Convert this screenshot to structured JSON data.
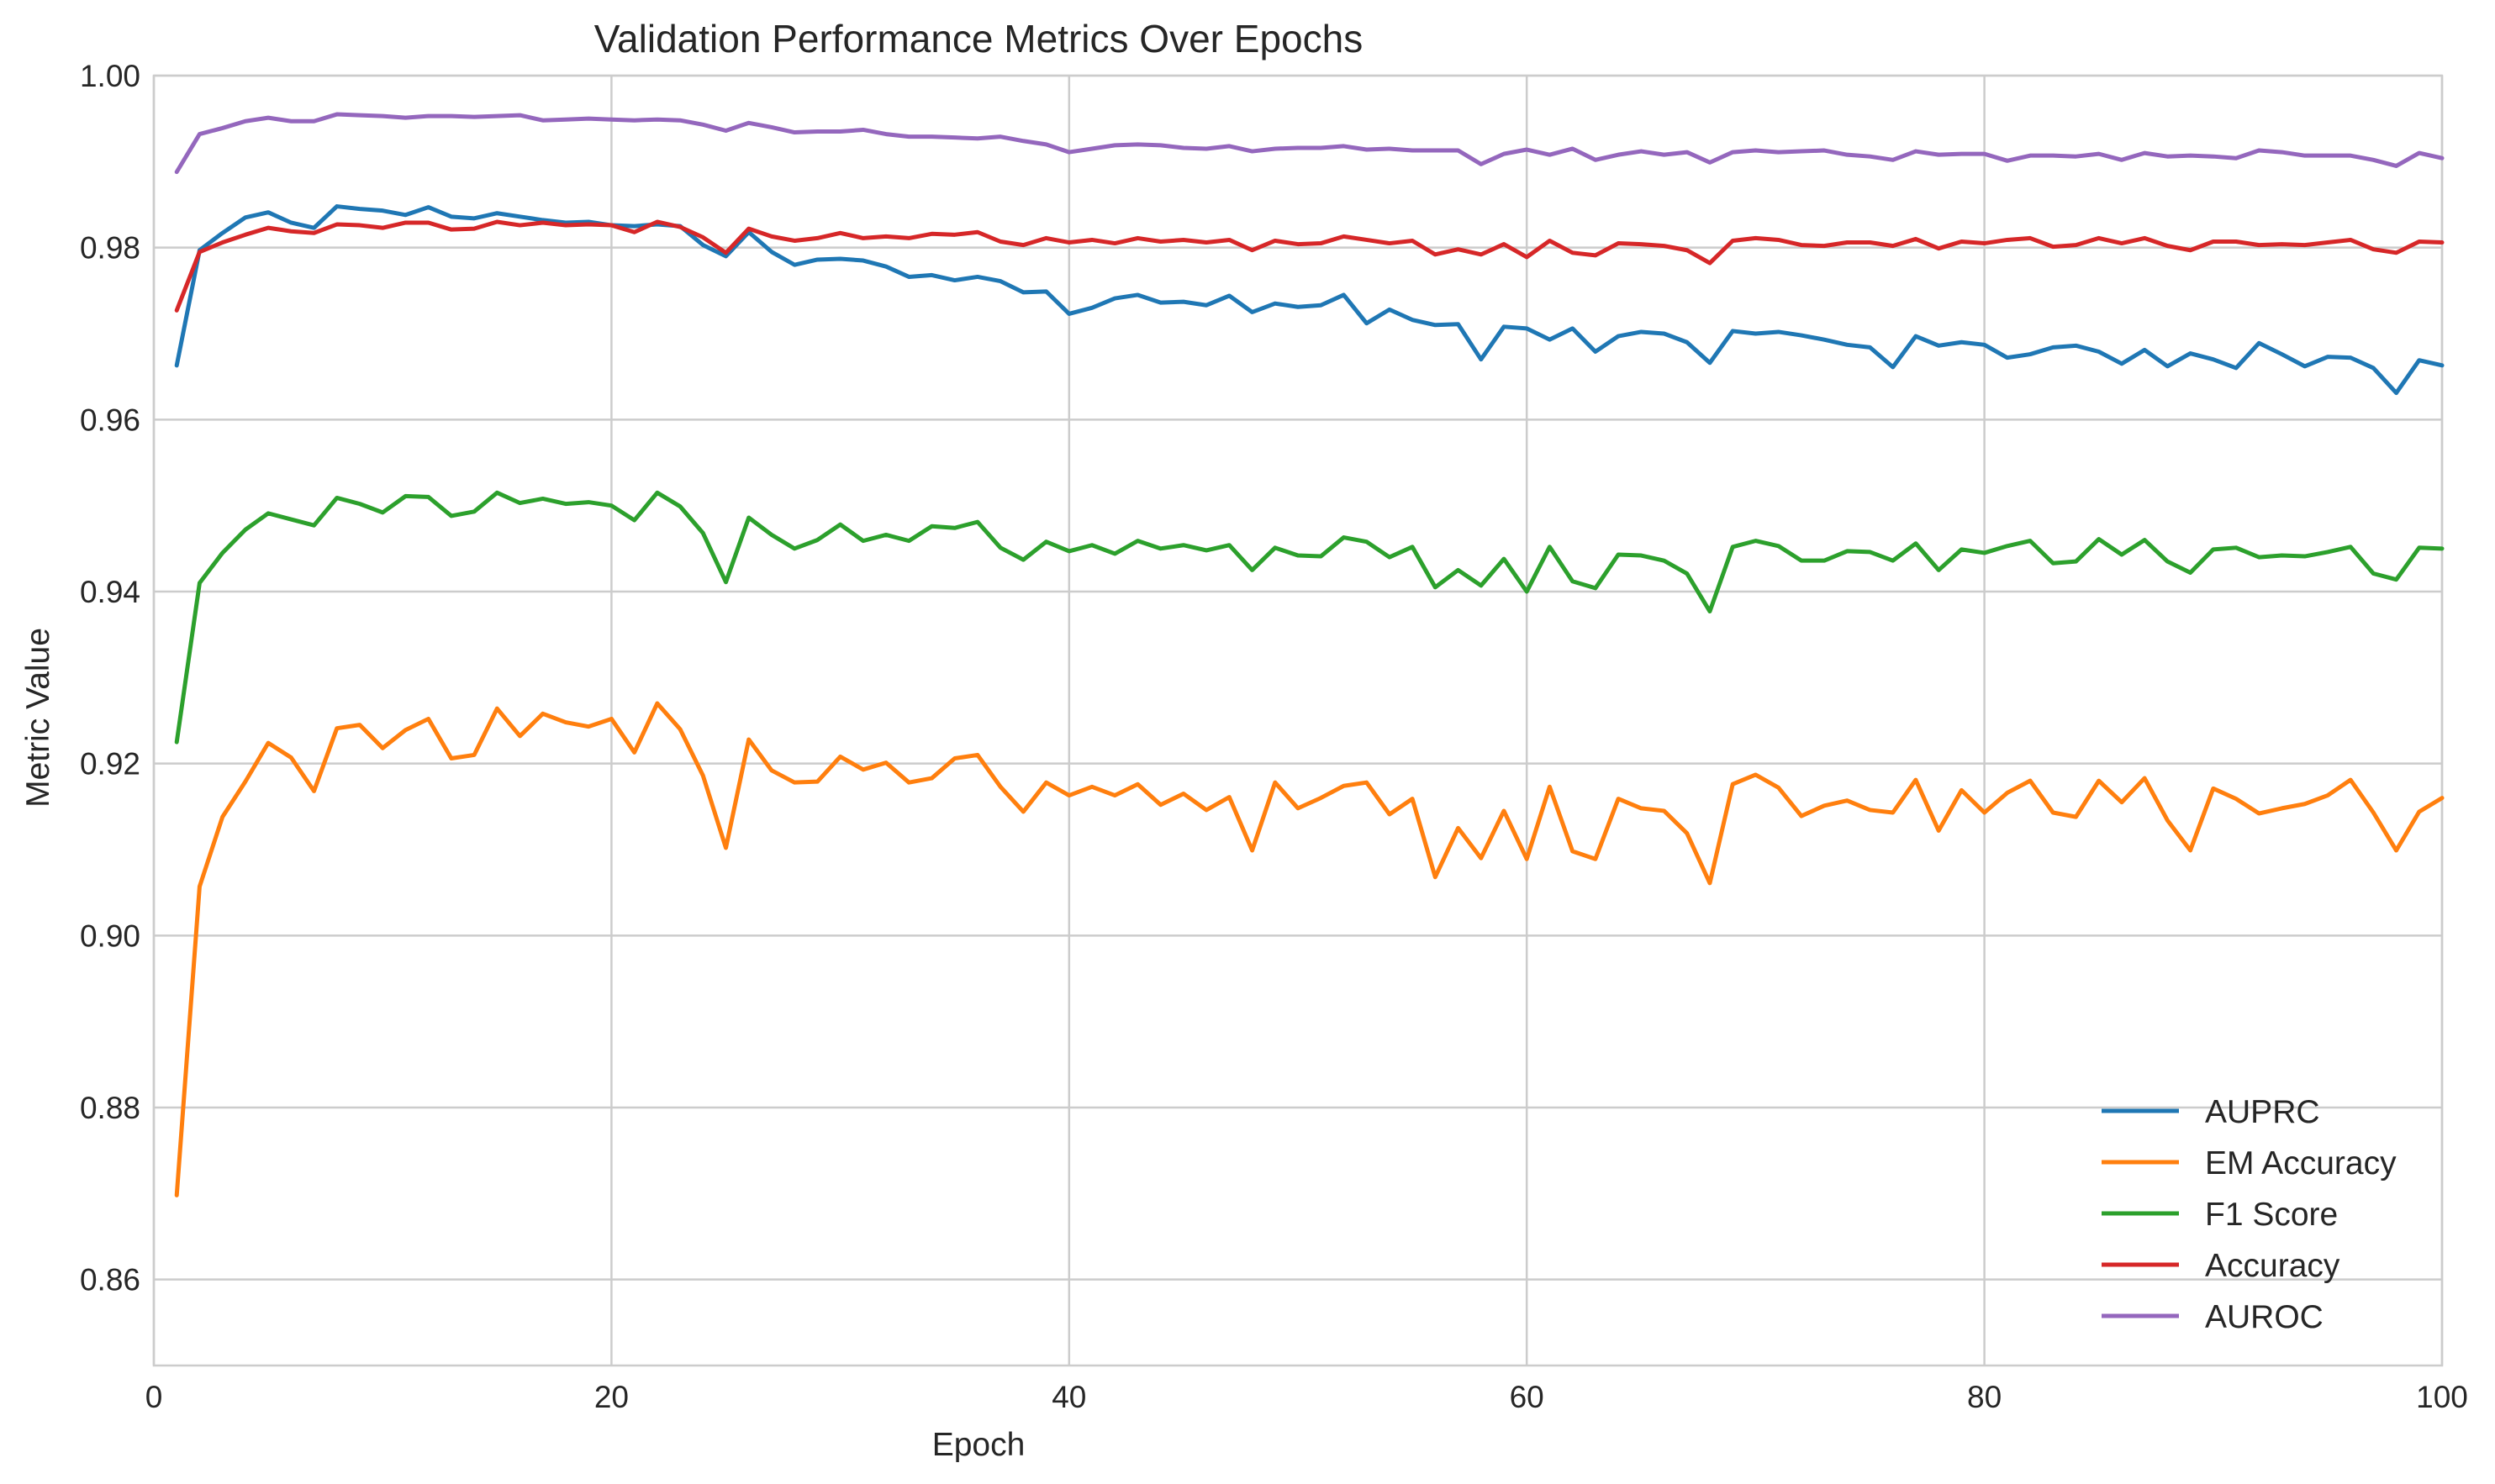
{
  "chart_data": {
    "type": "line",
    "title": "Validation Performance Metrics Over Epochs",
    "xlabel": "Epoch",
    "ylabel": "Metric Value",
    "xlim": [
      0,
      100
    ],
    "ylim": [
      0.85,
      1.0
    ],
    "xticks": [
      0,
      20,
      40,
      60,
      80,
      100
    ],
    "yticks": [
      0.86,
      0.88,
      0.9,
      0.92,
      0.94,
      0.96,
      0.98,
      1.0
    ],
    "xtick_labels": [
      "0",
      "20",
      "40",
      "60",
      "80",
      "100"
    ],
    "ytick_labels": [
      "0.86",
      "0.88",
      "0.90",
      "0.92",
      "0.94",
      "0.96",
      "0.98",
      "1.00"
    ],
    "grid": true,
    "legend_position": "bottom-right",
    "series": [
      {
        "name": "AUPRC",
        "color": "#1f77b4",
        "values": [
          0.9663,
          0.9797,
          0.9817,
          0.9835,
          0.9841,
          0.9829,
          0.9823,
          0.9848,
          0.9845,
          0.9843,
          0.9838,
          0.9847,
          0.9836,
          0.9834,
          0.984,
          0.9836,
          0.9832,
          0.9829,
          0.983,
          0.9826,
          0.9825,
          0.9827,
          0.9825,
          0.9803,
          0.979,
          0.9818,
          0.9795,
          0.978,
          0.9786,
          0.9787,
          0.9785,
          0.9778,
          0.9766,
          0.9768,
          0.9762,
          0.9766,
          0.9761,
          0.9748,
          0.9749,
          0.9723,
          0.973,
          0.9741,
          0.9745,
          0.9736,
          0.9737,
          0.9733,
          0.9744,
          0.9725,
          0.9735,
          0.9731,
          0.9733,
          0.9745,
          0.9712,
          0.9728,
          0.9716,
          0.971,
          0.9711,
          0.967,
          0.9708,
          0.9706,
          0.9693,
          0.9706,
          0.9679,
          0.9697,
          0.9702,
          0.97,
          0.969,
          0.9666,
          0.9703,
          0.97,
          0.9702,
          0.9698,
          0.9693,
          0.9687,
          0.9684,
          0.9661,
          0.9697,
          0.9686,
          0.969,
          0.9687,
          0.9672,
          0.9676,
          0.9684,
          0.9686,
          0.9679,
          0.9665,
          0.9681,
          0.9662,
          0.9677,
          0.967,
          0.966,
          0.9689,
          0.9676,
          0.9662,
          0.9673,
          0.9672,
          0.966,
          0.9631,
          0.9669,
          0.9663
        ]
      },
      {
        "name": "EM Accuracy",
        "color": "#ff7f0e",
        "values": [
          0.8698,
          0.9057,
          0.9138,
          0.9179,
          0.9224,
          0.9207,
          0.9168,
          0.9241,
          0.9245,
          0.9218,
          0.9239,
          0.9252,
          0.9206,
          0.921,
          0.9264,
          0.9232,
          0.9258,
          0.9248,
          0.9243,
          0.9252,
          0.9213,
          0.927,
          0.924,
          0.9186,
          0.9102,
          0.9228,
          0.9192,
          0.9178,
          0.9179,
          0.9208,
          0.9193,
          0.9201,
          0.9178,
          0.9183,
          0.9206,
          0.921,
          0.9173,
          0.9144,
          0.9178,
          0.9163,
          0.9173,
          0.9163,
          0.9176,
          0.9152,
          0.9165,
          0.9146,
          0.9161,
          0.9099,
          0.9178,
          0.9148,
          0.916,
          0.9174,
          0.9178,
          0.9141,
          0.9159,
          0.9068,
          0.9125,
          0.909,
          0.9145,
          0.9089,
          0.9173,
          0.9098,
          0.9089,
          0.9159,
          0.9148,
          0.9145,
          0.9119,
          0.9061,
          0.9176,
          0.9187,
          0.9172,
          0.9139,
          0.9151,
          0.9157,
          0.9146,
          0.9143,
          0.9181,
          0.9122,
          0.9169,
          0.9143,
          0.9166,
          0.918,
          0.9143,
          0.9138,
          0.918,
          0.9155,
          0.9183,
          0.9134,
          0.9099,
          0.9171,
          0.9159,
          0.9142,
          0.9148,
          0.9153,
          0.9163,
          0.9181,
          0.9143,
          0.9099,
          0.9144,
          0.916
        ]
      },
      {
        "name": "F1 Score",
        "color": "#2ca02c",
        "values": [
          0.9225,
          0.941,
          0.9445,
          0.9472,
          0.9491,
          0.9484,
          0.9477,
          0.9509,
          0.9502,
          0.9492,
          0.9511,
          0.951,
          0.9488,
          0.9493,
          0.9515,
          0.9503,
          0.9508,
          0.9502,
          0.9504,
          0.95,
          0.9483,
          0.9515,
          0.9499,
          0.9468,
          0.9411,
          0.9486,
          0.9466,
          0.945,
          0.946,
          0.9478,
          0.9459,
          0.9466,
          0.9459,
          0.9476,
          0.9474,
          0.9481,
          0.9451,
          0.9437,
          0.9458,
          0.9447,
          0.9454,
          0.9444,
          0.9459,
          0.945,
          0.9454,
          0.9448,
          0.9454,
          0.9425,
          0.9451,
          0.9442,
          0.9441,
          0.9463,
          0.9458,
          0.944,
          0.9452,
          0.9405,
          0.9425,
          0.9407,
          0.9438,
          0.94,
          0.9452,
          0.9412,
          0.9404,
          0.9443,
          0.9442,
          0.9436,
          0.9421,
          0.9377,
          0.9452,
          0.9459,
          0.9453,
          0.9436,
          0.9436,
          0.9447,
          0.9446,
          0.9436,
          0.9456,
          0.9425,
          0.9449,
          0.9445,
          0.9453,
          0.9459,
          0.9433,
          0.9435,
          0.9461,
          0.9443,
          0.946,
          0.9435,
          0.9422,
          0.9449,
          0.9451,
          0.944,
          0.9442,
          0.9441,
          0.9446,
          0.9452,
          0.9421,
          0.9414,
          0.9451,
          0.945
        ]
      },
      {
        "name": "Accuracy",
        "color": "#d62728",
        "values": [
          0.9727,
          0.9795,
          0.9806,
          0.9815,
          0.9823,
          0.9819,
          0.9817,
          0.9827,
          0.9826,
          0.9823,
          0.9829,
          0.9829,
          0.9821,
          0.9822,
          0.983,
          0.9826,
          0.9829,
          0.9826,
          0.9827,
          0.9826,
          0.9818,
          0.983,
          0.9824,
          0.9812,
          0.9794,
          0.9822,
          0.9813,
          0.9808,
          0.9811,
          0.9817,
          0.9811,
          0.9813,
          0.9811,
          0.9816,
          0.9815,
          0.9818,
          0.9807,
          0.9803,
          0.9811,
          0.9806,
          0.9809,
          0.9805,
          0.9811,
          0.9807,
          0.9809,
          0.9806,
          0.9809,
          0.9797,
          0.9808,
          0.9804,
          0.9805,
          0.9813,
          0.9809,
          0.9805,
          0.9808,
          0.9792,
          0.9798,
          0.9792,
          0.9804,
          0.9789,
          0.9808,
          0.9794,
          0.9791,
          0.9805,
          0.9804,
          0.9802,
          0.9797,
          0.9782,
          0.9808,
          0.9811,
          0.9809,
          0.9803,
          0.9802,
          0.9806,
          0.9806,
          0.9802,
          0.981,
          0.9799,
          0.9807,
          0.9805,
          0.9809,
          0.9811,
          0.9801,
          0.9803,
          0.9811,
          0.9805,
          0.9811,
          0.9802,
          0.9797,
          0.9807,
          0.9807,
          0.9803,
          0.9804,
          0.9803,
          0.9806,
          0.9809,
          0.9798,
          0.9794,
          0.9807,
          0.9806
        ]
      },
      {
        "name": "AUROC",
        "color": "#9467bd",
        "values": [
          0.9888,
          0.9932,
          0.9939,
          0.9947,
          0.9951,
          0.9947,
          0.9947,
          0.9955,
          0.9954,
          0.9953,
          0.9951,
          0.9953,
          0.9953,
          0.9952,
          0.9953,
          0.9954,
          0.9948,
          0.9949,
          0.995,
          0.9949,
          0.9948,
          0.9949,
          0.9948,
          0.9943,
          0.9936,
          0.9945,
          0.994,
          0.9934,
          0.9935,
          0.9935,
          0.9937,
          0.9932,
          0.9929,
          0.9929,
          0.9928,
          0.9927,
          0.9929,
          0.9924,
          0.992,
          0.9911,
          0.9915,
          0.9919,
          0.992,
          0.9919,
          0.9916,
          0.9915,
          0.9918,
          0.9912,
          0.9915,
          0.9916,
          0.9916,
          0.9918,
          0.9914,
          0.9915,
          0.9913,
          0.9913,
          0.9913,
          0.9897,
          0.9909,
          0.9914,
          0.9908,
          0.9915,
          0.9902,
          0.9908,
          0.9912,
          0.9908,
          0.9911,
          0.9899,
          0.9911,
          0.9913,
          0.9911,
          0.9912,
          0.9913,
          0.9908,
          0.9906,
          0.9902,
          0.9912,
          0.9908,
          0.9909,
          0.9909,
          0.9901,
          0.9907,
          0.9907,
          0.9906,
          0.9909,
          0.9902,
          0.991,
          0.9906,
          0.9907,
          0.9906,
          0.9904,
          0.9913,
          0.9911,
          0.9907,
          0.9907,
          0.9907,
          0.9902,
          0.9895,
          0.991,
          0.9904
        ]
      }
    ]
  }
}
